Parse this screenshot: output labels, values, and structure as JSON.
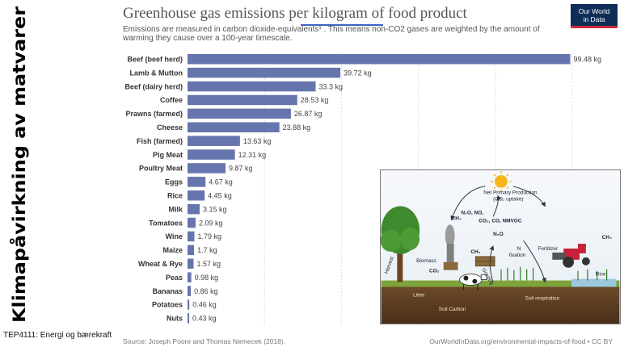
{
  "slide": {
    "side_title": "Klimapåvirkning av matvarer",
    "course": "TEP4111: Energi og bærekraft"
  },
  "chart_data": {
    "type": "bar",
    "orientation": "horizontal",
    "title": "Greenhouse gas emissions per kilogram of food product",
    "subtitle": "Emissions are measured in carbon dioxide-equivalents¹ . This means non-CO2 gases are weighted by the amount of warming they cause over a 100-year timescale.",
    "unit_suffix": " kg",
    "categories": [
      "Beef (beef herd)",
      "Lamb & Mutton",
      "Beef (dairy herd)",
      "Coffee",
      "Prawns (farmed)",
      "Cheese",
      "Fish (farmed)",
      "Pig Meat",
      "Poultry Meat",
      "Eggs",
      "Rice",
      "Milk",
      "Tomatoes",
      "Wine",
      "Maize",
      "Wheat & Rye",
      "Peas",
      "Bananas",
      "Potatoes",
      "Nuts"
    ],
    "values": [
      99.48,
      39.72,
      33.3,
      28.53,
      26.87,
      23.88,
      13.63,
      12.31,
      9.87,
      4.67,
      4.45,
      3.15,
      2.09,
      1.79,
      1.7,
      1.57,
      0.98,
      0.86,
      0.46,
      0.43
    ],
    "value_labels": [
      "99.48 kg",
      "39.72 kg",
      "33.3 kg",
      "28.53 kg",
      "26.87 kg",
      "23.88 kg",
      "13.63 kg",
      "12.31 kg",
      "9.87 kg",
      "4.67 kg",
      "4.45 kg",
      "3.15 kg",
      "2.09 kg",
      "1.79 kg",
      "1.7 kg",
      "1.57 kg",
      "0.98 kg",
      "0.86 kg",
      "0.46 kg",
      "0.43 kg"
    ],
    "xlim": [
      0,
      100
    ],
    "grid": true,
    "bar_color": "#6675ad",
    "source": "Source: Joseph Poore and Thomas Nemecek (2018).",
    "footer_right": "OurWorldInData.org/environmental-impacts-of-food • CC BY"
  },
  "logo": {
    "line1": "Our World",
    "line2": "in Data",
    "bg": "#0f2e57",
    "accent": "#cc2c3d"
  },
  "inset": {
    "labels": {
      "npp": "Net Primary Production",
      "npp_sub": "(CO₂ uptake)",
      "n2o_no": "N₂O, NO,",
      "ch4_a": "CH₄",
      "co2_a": "CO₂, CO, NMVOC",
      "n2o_b": "N₂O",
      "ch4_b": "CH₄",
      "ch4_c": "CH₄",
      "harvest": "Harvest",
      "biomass": "Biomass",
      "co2_b": "CO₂",
      "n_fixation": "N",
      "fixation": "fixation",
      "fertilizer": "Fertilizer",
      "grazing": "Grazing",
      "litter": "Litter",
      "soil_carbon": "Soil Carbon",
      "soil_respiration": "Soil respiration",
      "rice": "Rice"
    }
  }
}
